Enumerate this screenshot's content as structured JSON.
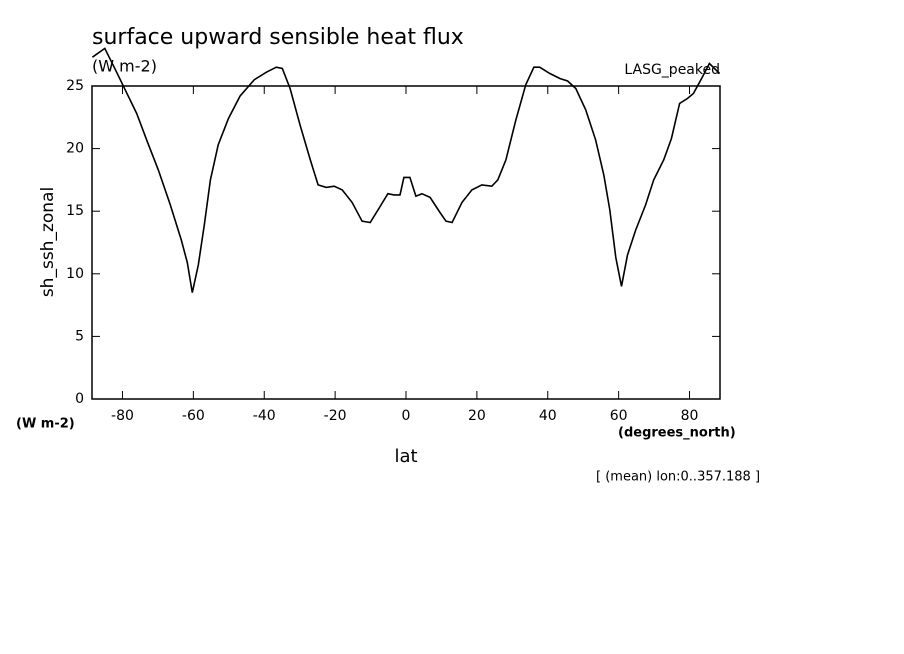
{
  "chart_data": {
    "type": "line",
    "title": "surface upward sensible heat flux",
    "subtitle": "(W m-2)",
    "annotation": "LASG_peaked",
    "y_label": "sh_ssh_zonal",
    "y_units": "(W m-2)",
    "x_units": "(degrees_north)",
    "x_label": "lat",
    "footnote": "[ (mean) lon:0..357.188 ]",
    "color": "#000000",
    "xlim": [
      -88.6,
      88.6
    ],
    "ylim": [
      0,
      25
    ],
    "xticks": [
      -80,
      -60,
      -40,
      -20,
      0,
      20,
      40,
      60,
      80
    ],
    "yticks": [
      0,
      5,
      10,
      15,
      20,
      25
    ],
    "x": [
      -88.5,
      -85,
      -82,
      -78.9,
      -76,
      -73.2,
      -69.9,
      -66.5,
      -63.4,
      -61.7,
      -60.3,
      -58.6,
      -56.9,
      -55.2,
      -53,
      -50.1,
      -46.8,
      -42.8,
      -39.4,
      -36.6,
      -34.9,
      -32.7,
      -29.9,
      -27,
      -24.8,
      -22.5,
      -20.3,
      -18,
      -15.2,
      -12.4,
      -10.1,
      -7.9,
      -5.1,
      -3.4,
      -1.7,
      -0.6,
      1.1,
      2.8,
      4.5,
      6.8,
      9.6,
      11.3,
      13,
      15.8,
      18.6,
      21.4,
      24.2,
      25.9,
      28.2,
      31,
      33.8,
      36.1,
      37.7,
      40.6,
      43.4,
      45.6,
      47.9,
      50.7,
      53.5,
      55.8,
      57.5,
      59.2,
      60.8,
      62.5,
      64.8,
      67.6,
      69.9,
      72.7,
      74.9,
      77.2,
      79.4,
      81.1,
      83.4,
      85.6,
      88.5
    ],
    "values": [
      27.3,
      28.0,
      26.3,
      24.5,
      22.8,
      20.7,
      18.3,
      15.5,
      12.7,
      10.9,
      8.5,
      10.7,
      13.9,
      17.5,
      20.3,
      22.4,
      24.2,
      25.5,
      26.1,
      26.5,
      26.4,
      24.8,
      21.9,
      19.1,
      17.1,
      16.9,
      17.0,
      16.7,
      15.7,
      14.2,
      14.1,
      15.1,
      16.4,
      16.3,
      16.3,
      17.7,
      17.7,
      16.2,
      16.4,
      16.1,
      14.9,
      14.2,
      14.1,
      15.7,
      16.7,
      17.1,
      17.0,
      17.5,
      19.1,
      22.3,
      25.1,
      26.5,
      26.5,
      26.0,
      25.6,
      25.4,
      24.8,
      23.1,
      20.7,
      17.9,
      15.1,
      11.3,
      9.0,
      11.5,
      13.5,
      15.5,
      17.5,
      19.1,
      20.8,
      23.6,
      24.0,
      24.4,
      25.6,
      26.8,
      26.0
    ]
  }
}
